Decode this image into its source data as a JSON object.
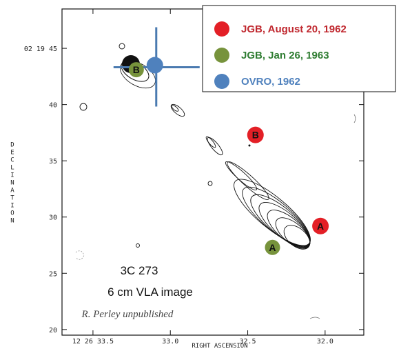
{
  "chart_data": {
    "type": "scatter",
    "title": "",
    "xlabel": "RIGHT ASCENSION",
    "ylabel": "DECLINATION",
    "x_ticks": [
      {
        "value": 33.5,
        "label": "12 26 33.5"
      },
      {
        "value": 33.0,
        "label": "33.0"
      },
      {
        "value": 32.5,
        "label": "32.5"
      },
      {
        "value": 32.0,
        "label": "32.0"
      }
    ],
    "y_ticks": [
      {
        "value": 45,
        "label": "02 19 45"
      },
      {
        "value": 40,
        "label": "40"
      },
      {
        "value": 35,
        "label": "35"
      },
      {
        "value": 30,
        "label": "30"
      },
      {
        "value": 25,
        "label": "25"
      },
      {
        "value": 20,
        "label": "20"
      }
    ],
    "xlim": [
      33.7,
      31.75
    ],
    "ylim": [
      19.5,
      48.5
    ],
    "legend_position": "top-right",
    "series": [
      {
        "name": "JGB, August 20, 1962",
        "color": "#e31f26",
        "text_color": "#c0282f",
        "points": [
          {
            "x": 32.45,
            "y": 37.3,
            "label": "B"
          },
          {
            "x": 32.03,
            "y": 29.2,
            "label": "A"
          }
        ]
      },
      {
        "name": "JGB, Jan 26, 1963",
        "color": "#77933c",
        "text_color": "#2f7d32",
        "points": [
          {
            "x": 33.22,
            "y": 43.1,
            "label": "B"
          },
          {
            "x": 32.34,
            "y": 27.3,
            "label": "A"
          }
        ]
      },
      {
        "name": "OVRO, 1962",
        "color": "#4f81bd",
        "text_color": "#4f81bd",
        "points": [
          {
            "x": 33.1,
            "y": 43.5,
            "label": ""
          }
        ]
      }
    ],
    "annotations": [
      "3C 273",
      "6 cm VLA image",
      "R. Perley unpublished"
    ],
    "grid": false
  }
}
